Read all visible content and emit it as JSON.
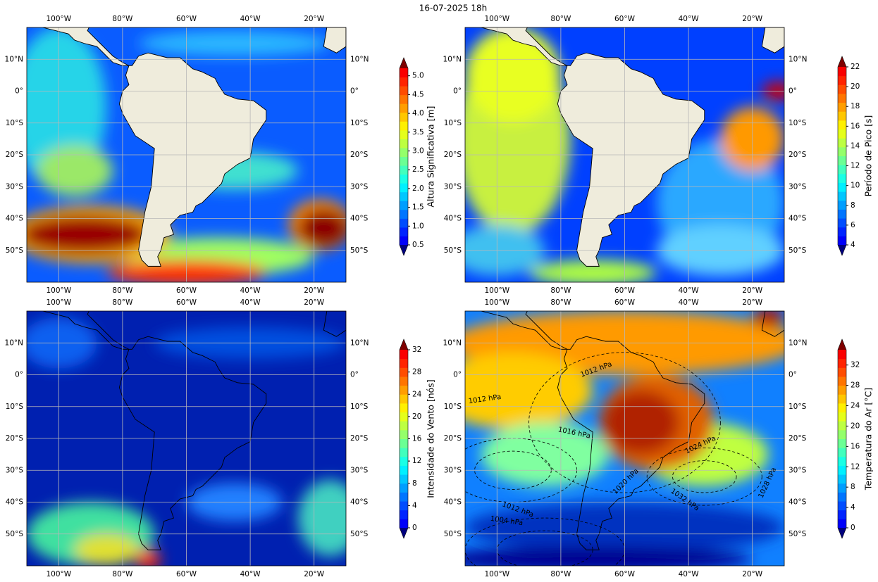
{
  "title": "16-07-2025 18h",
  "map": {
    "lonlim": [
      -110,
      -10
    ],
    "latlim": [
      -60,
      20
    ],
    "lon_ticks": [
      {
        "value": -100,
        "label": "100°W"
      },
      {
        "value": -80,
        "label": "80°W"
      },
      {
        "value": -60,
        "label": "60°W"
      },
      {
        "value": -40,
        "label": "40°W"
      },
      {
        "value": -20,
        "label": "20°W"
      }
    ],
    "lat_ticks": [
      {
        "value": 10,
        "label": "10°N"
      },
      {
        "value": 0,
        "label": "0°"
      },
      {
        "value": -10,
        "label": "10°S"
      },
      {
        "value": -20,
        "label": "20°S"
      },
      {
        "value": -30,
        "label": "30°S"
      },
      {
        "value": -40,
        "label": "40°S"
      },
      {
        "value": -50,
        "label": "50°S"
      }
    ]
  },
  "panels": [
    {
      "colorbar": {
        "label": "Altura Significativa [m]",
        "clim": [
          0.5,
          5.2
        ],
        "ticks": [
          0.5,
          {
            "value": 1,
            "label": "1.0"
          },
          1.5,
          {
            "value": 2,
            "label": "2.0"
          },
          2.5,
          {
            "value": 3,
            "label": "3.0"
          },
          3.5,
          {
            "value": 4,
            "label": "4.0"
          },
          4.5,
          {
            "value": 5,
            "label": "5.0"
          }
        ]
      }
    },
    {
      "colorbar": {
        "label": "Período de Pico [s]",
        "clim": [
          4,
          22
        ],
        "ticks": [
          4,
          6,
          8,
          10,
          12,
          14,
          16,
          18,
          20,
          22
        ]
      }
    },
    {
      "colorbar": {
        "label": "Intensidade do Vento [nós]",
        "clim": [
          0,
          32
        ],
        "ticks": [
          0,
          4,
          8,
          12,
          16,
          20,
          24,
          28,
          32
        ]
      }
    },
    {
      "colorbar": {
        "label": "Temperatura do Ar [°C]",
        "clim": [
          0,
          35
        ],
        "ticks": [
          0,
          4,
          8,
          12,
          16,
          20,
          24,
          28,
          32
        ]
      }
    }
  ],
  "contour_labels": [
    "1012 hPa",
    "1016 hPa",
    "1024 hPa",
    "1020 hPa",
    "1032 hPa",
    "1028 hPa",
    "1012 hPa",
    "1004 hPa",
    "1012 hPa"
  ]
}
